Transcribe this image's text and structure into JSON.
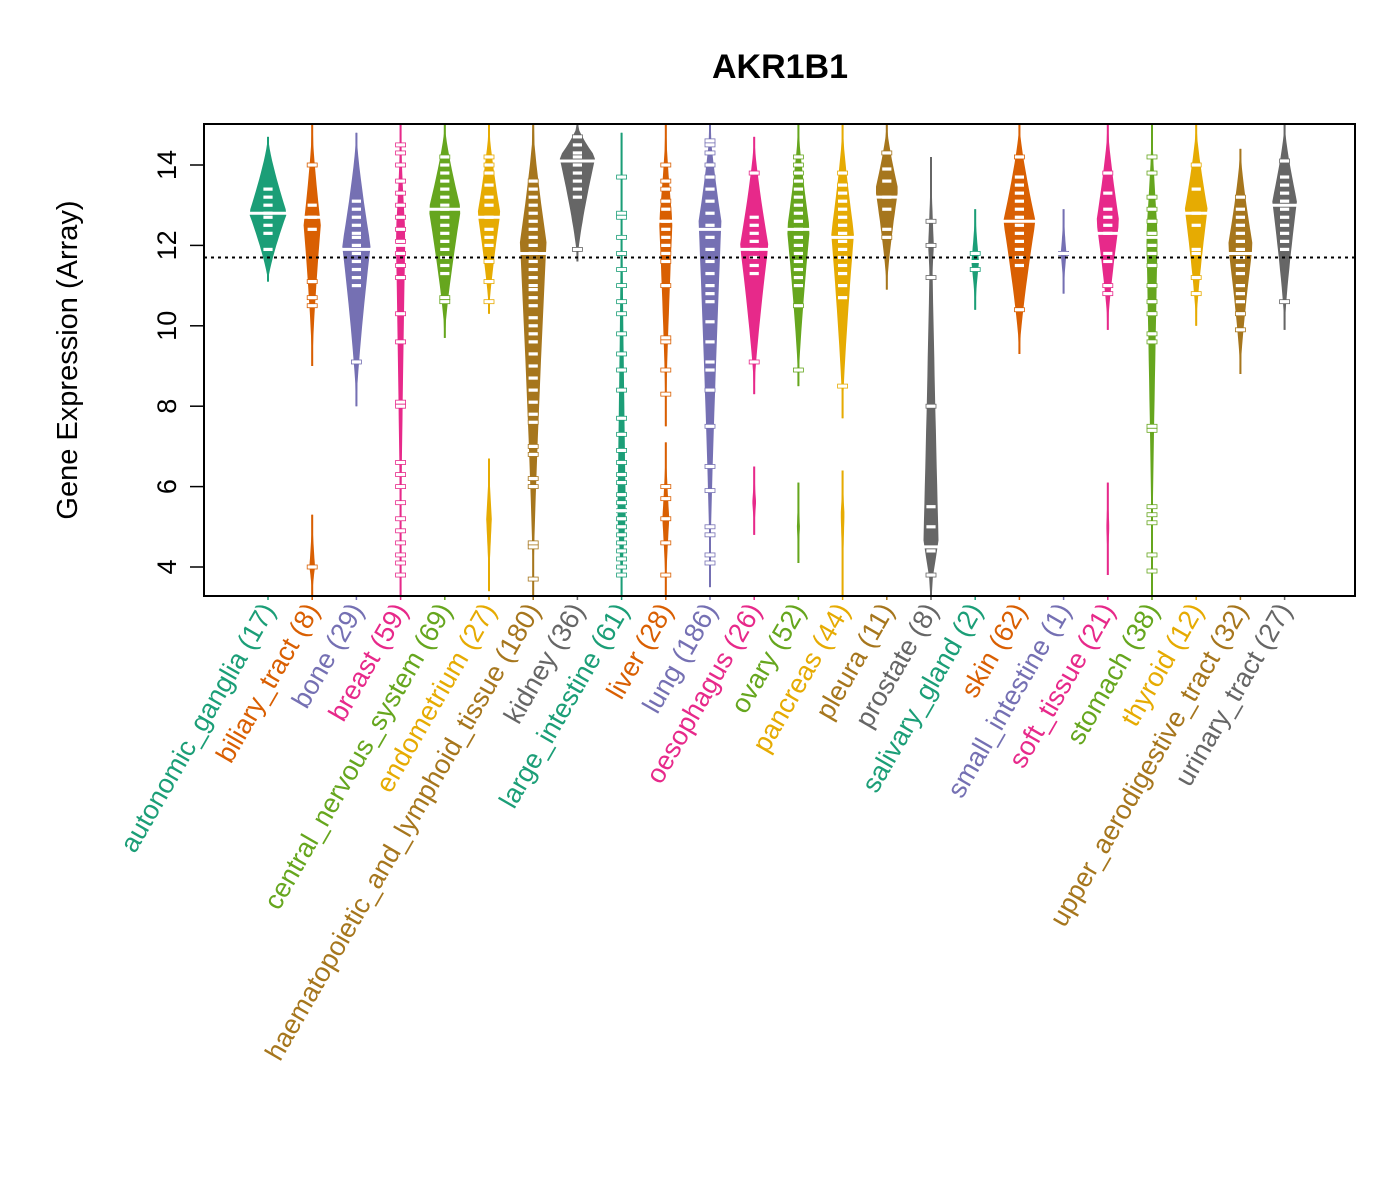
{
  "chart_data": {
    "type": "violin",
    "title": "AKR1B1",
    "xlabel": "",
    "ylabel": "Gene Expression (Array)",
    "ylim": [
      3.3,
      15.05
    ],
    "yticks": [
      4,
      6,
      8,
      10,
      12,
      14
    ],
    "grid": false,
    "legend": "none",
    "reference_line": {
      "value": 11.7,
      "style": "dotted",
      "color": "#000000"
    },
    "categories": [
      {
        "name": "autonomic_ganglia",
        "n": 17,
        "color": "#1B9E77",
        "median": 12.8,
        "min": 11.1,
        "max": 14.7,
        "mode": 12.8,
        "width": 1.0,
        "points": [
          13.4,
          13.2,
          13.0,
          12.8,
          12.7,
          12.5,
          12.3,
          11.9
        ]
      },
      {
        "name": "biliary_tract",
        "n": 8,
        "color": "#D95F02",
        "median": 12.7,
        "min": 9.0,
        "max": 15.0,
        "mode": 12.5,
        "width": 0.45,
        "points": [
          14.0,
          13.0,
          12.7,
          12.4,
          11.1,
          10.7,
          10.5,
          4.0
        ],
        "low": {
          "min": 3.3,
          "max": 5.3,
          "mode": 4.0,
          "width": 0.15
        }
      },
      {
        "name": "bone",
        "n": 29,
        "color": "#7570B3",
        "median": 11.9,
        "min": 8.0,
        "max": 14.8,
        "mode": 12.0,
        "width": 0.75,
        "points": [
          13.1,
          12.9,
          12.7,
          12.5,
          12.3,
          12.2,
          12.0,
          11.8,
          11.6,
          11.4,
          11.2,
          11.0,
          9.1
        ]
      },
      {
        "name": "breast",
        "n": 59,
        "color": "#E7298A",
        "median": 12.0,
        "min": 3.3,
        "max": 15.0,
        "mode": 12.3,
        "width": 0.25,
        "points": [
          14.5,
          14.3,
          14.0,
          13.6,
          13.3,
          13.0,
          12.7,
          12.4,
          12.1,
          11.8,
          11.5,
          11.2,
          10.3,
          9.6,
          8.1,
          8.0,
          6.6,
          6.3,
          6.0,
          5.6,
          5.2,
          4.9,
          4.6,
          4.3,
          4.1,
          3.8
        ]
      },
      {
        "name": "central_nervous_system",
        "n": 69,
        "color": "#66A61E",
        "median": 12.9,
        "min": 9.7,
        "max": 15.0,
        "mode": 12.9,
        "width": 0.85,
        "points": [
          14.2,
          14.0,
          13.8,
          13.6,
          13.4,
          13.2,
          13.0,
          12.9,
          12.7,
          12.5,
          12.3,
          12.1,
          11.9,
          11.7,
          11.5,
          11.3,
          10.7,
          10.6
        ]
      },
      {
        "name": "endometrium",
        "n": 27,
        "color": "#E6AB02",
        "median": 12.7,
        "min": 10.3,
        "max": 15.0,
        "mode": 12.8,
        "width": 0.6,
        "points": [
          14.2,
          14.0,
          13.8,
          13.5,
          13.2,
          13.0,
          12.7,
          12.4,
          12.2,
          12.0,
          11.6,
          11.1,
          10.6
        ],
        "low": {
          "min": 3.4,
          "max": 6.7,
          "mode": 5.2,
          "width": 0.15,
          "points": [
            6.0,
            5.2,
            4.4,
            4.2
          ]
        }
      },
      {
        "name": "haematopoietic_and_lymphoid_tissue",
        "n": 180,
        "color": "#A6761D",
        "median": 11.8,
        "min": 3.3,
        "max": 15.0,
        "mode": 12.1,
        "width": 0.7,
        "points": [
          13.6,
          13.4,
          13.2,
          13.0,
          12.8,
          12.6,
          12.4,
          12.2,
          12.0,
          11.8,
          11.6,
          11.4,
          11.2,
          11.0,
          10.9,
          10.7,
          10.5,
          10.2,
          10.0,
          9.8,
          9.6,
          9.3,
          9.0,
          8.7,
          8.4,
          8.1,
          7.8,
          7.6,
          7.0,
          6.8,
          6.2,
          6.0,
          4.6,
          4.5,
          3.7
        ]
      },
      {
        "name": "kidney",
        "n": 36,
        "color": "#666666",
        "median": 14.1,
        "min": 11.6,
        "max": 15.0,
        "mode": 14.2,
        "width": 0.95,
        "points": [
          14.7,
          14.5,
          14.3,
          14.2,
          14.0,
          13.8,
          13.6,
          13.4,
          13.2,
          11.9
        ]
      },
      {
        "name": "large_intestine",
        "n": 61,
        "color": "#1B9E77",
        "median": 5.4,
        "min": 3.3,
        "max": 14.8,
        "mode": 5.3,
        "width": 0.22,
        "points": [
          13.7,
          12.8,
          12.7,
          12.2,
          11.8,
          11.4,
          11.0,
          10.6,
          10.3,
          9.8,
          9.3,
          8.9,
          8.4,
          7.7,
          7.3,
          6.9,
          6.6,
          6.3,
          6.1,
          5.8,
          5.6,
          5.4,
          5.2,
          5.0,
          4.8,
          4.6,
          4.4,
          4.2,
          4.0,
          3.8
        ]
      },
      {
        "name": "liver",
        "n": 28,
        "color": "#D95F02",
        "median": 12.6,
        "min": 7.5,
        "max": 15.0,
        "mode": 12.6,
        "width": 0.35,
        "points": [
          14.0,
          13.6,
          13.4,
          13.1,
          12.9,
          12.6,
          12.4,
          12.2,
          12.0,
          11.8,
          11.6,
          11.0,
          9.7,
          9.6,
          8.9,
          8.3,
          6.0,
          5.7,
          5.2,
          4.6,
          3.8
        ],
        "low": {
          "min": 3.3,
          "max": 7.1,
          "mode": 5.2,
          "width": 0.18
        }
      },
      {
        "name": "lung",
        "n": 186,
        "color": "#7570B3",
        "median": 12.4,
        "min": 3.5,
        "max": 15.0,
        "mode": 12.6,
        "width": 0.6,
        "points": [
          14.6,
          14.5,
          14.3,
          14.0,
          13.7,
          13.4,
          13.1,
          12.8,
          12.5,
          12.2,
          11.9,
          11.6,
          11.3,
          11.0,
          10.8,
          10.6,
          10.1,
          9.6,
          9.1,
          8.9,
          8.4,
          7.5,
          6.5,
          5.9,
          5.0,
          4.8,
          4.3,
          4.1
        ]
      },
      {
        "name": "oesophagus",
        "n": 26,
        "color": "#E7298A",
        "median": 11.9,
        "min": 8.3,
        "max": 14.7,
        "mode": 12.0,
        "width": 0.75,
        "points": [
          13.8,
          12.7,
          12.5,
          12.3,
          12.1,
          11.9,
          11.7,
          11.5,
          11.3,
          9.1
        ],
        "low": {
          "min": 4.8,
          "max": 6.5,
          "mode": 5.6,
          "width": 0.1,
          "points": [
            5.6
          ]
        }
      },
      {
        "name": "ovary",
        "n": 52,
        "color": "#66A61E",
        "median": 12.4,
        "min": 8.5,
        "max": 15.0,
        "mode": 12.4,
        "width": 0.6,
        "points": [
          14.2,
          14.0,
          13.8,
          13.6,
          13.4,
          13.2,
          13.0,
          12.8,
          12.6,
          12.4,
          12.2,
          12.0,
          11.8,
          11.6,
          11.4,
          11.2,
          11.0,
          10.5,
          8.9
        ],
        "low": {
          "min": 4.1,
          "max": 6.1,
          "mode": 5.0,
          "width": 0.08,
          "points": [
            5.5,
            4.7
          ]
        }
      },
      {
        "name": "pancreas",
        "n": 44,
        "color": "#E6AB02",
        "median": 12.2,
        "min": 7.7,
        "max": 15.0,
        "mode": 12.3,
        "width": 0.6,
        "points": [
          13.8,
          13.5,
          13.3,
          13.1,
          12.9,
          12.7,
          12.5,
          12.3,
          12.1,
          11.9,
          11.7,
          11.5,
          11.3,
          11.0,
          10.7,
          8.5
        ],
        "low": {
          "min": 3.3,
          "max": 6.4,
          "mode": 5.3,
          "width": 0.1,
          "points": [
            5.3,
            3.8
          ]
        }
      },
      {
        "name": "pleura",
        "n": 11,
        "color": "#A6761D",
        "median": 13.2,
        "min": 10.9,
        "max": 15.0,
        "mode": 13.4,
        "width": 0.6,
        "points": [
          14.3,
          13.9,
          13.6,
          13.2,
          12.9,
          12.4,
          12.2
        ]
      },
      {
        "name": "prostate",
        "n": 8,
        "color": "#666666",
        "median": 4.5,
        "min": 3.3,
        "max": 14.2,
        "mode": 4.6,
        "width": 0.4,
        "points": [
          12.6,
          12.0,
          11.2,
          8.0,
          5.5,
          5.0,
          4.4,
          3.8
        ],
        "upper": {
          "min": 10.2,
          "max": 14.2,
          "mode": 12.0,
          "width": 0.15
        },
        "mid": {
          "min": 6.9,
          "max": 9.5,
          "mode": 8.0,
          "width": 0.12
        }
      },
      {
        "name": "salivary_gland",
        "n": 2,
        "color": "#1B9E77",
        "median": 11.6,
        "min": 10.4,
        "max": 12.9,
        "mode": 11.6,
        "width": 0.2,
        "points": [
          11.8,
          11.4
        ]
      },
      {
        "name": "skin",
        "n": 62,
        "color": "#D95F02",
        "median": 12.6,
        "min": 9.3,
        "max": 15.0,
        "mode": 12.6,
        "width": 0.85,
        "points": [
          14.2,
          13.7,
          13.5,
          13.3,
          13.1,
          12.9,
          12.7,
          12.5,
          12.3,
          12.1,
          11.9,
          11.7,
          11.5,
          10.4
        ]
      },
      {
        "name": "small_intestine",
        "n": 1,
        "color": "#7570B3",
        "median": 11.8,
        "min": 10.8,
        "max": 12.9,
        "mode": 11.8,
        "width": 0.15,
        "points": [
          11.8
        ]
      },
      {
        "name": "soft_tissue",
        "n": 21,
        "color": "#E7298A",
        "median": 12.3,
        "min": 9.9,
        "max": 15.0,
        "mode": 12.6,
        "width": 0.6,
        "points": [
          13.8,
          13.3,
          12.9,
          12.7,
          12.5,
          12.3,
          11.8,
          11.6,
          11.0,
          10.8
        ],
        "low": {
          "min": 3.8,
          "max": 6.1,
          "mode": 5.0,
          "width": 0.08,
          "points": [
            4.9
          ]
        }
      },
      {
        "name": "stomach",
        "n": 38,
        "color": "#66A61E",
        "median": 12.2,
        "min": 3.3,
        "max": 15.0,
        "mode": 12.3,
        "width": 0.3,
        "points": [
          14.2,
          13.8,
          13.2,
          12.9,
          12.6,
          12.3,
          12.0,
          11.8,
          11.5,
          11.0,
          10.6,
          10.3,
          9.8,
          9.6,
          7.5,
          7.4,
          5.5,
          5.3,
          5.1,
          4.3,
          3.9
        ]
      },
      {
        "name": "thyroid",
        "n": 12,
        "color": "#E6AB02",
        "median": 12.8,
        "min": 10.0,
        "max": 15.0,
        "mode": 12.9,
        "width": 0.6,
        "points": [
          14.0,
          13.4,
          12.8,
          12.5,
          11.9,
          11.8,
          11.2,
          10.8
        ]
      },
      {
        "name": "upper_aerodigestive_tract",
        "n": 32,
        "color": "#A6761D",
        "median": 11.8,
        "min": 8.8,
        "max": 14.4,
        "mode": 12.0,
        "width": 0.65,
        "points": [
          13.2,
          12.9,
          12.7,
          12.5,
          12.3,
          12.1,
          11.9,
          11.7,
          11.5,
          11.3,
          11.0,
          10.8,
          10.6,
          10.3,
          9.9
        ]
      },
      {
        "name": "urinary_tract",
        "n": 27,
        "color": "#666666",
        "median": 13.0,
        "min": 9.9,
        "max": 15.0,
        "mode": 13.1,
        "width": 0.65,
        "points": [
          14.1,
          13.7,
          13.5,
          13.3,
          13.1,
          12.9,
          12.7,
          12.5,
          12.3,
          12.1,
          11.9,
          10.6
        ]
      }
    ]
  }
}
